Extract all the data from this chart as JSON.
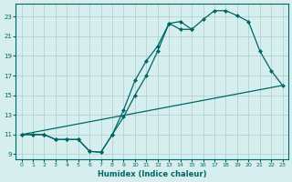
{
  "xlabel": "Humidex (Indice chaleur)",
  "background_color": "#d6eeee",
  "grid_color": "#aacece",
  "line_color": "#006666",
  "xlim": [
    -0.5,
    23.5
  ],
  "ylim": [
    8.5,
    24.3
  ],
  "yticks": [
    9,
    11,
    13,
    15,
    17,
    19,
    21,
    23
  ],
  "xticks": [
    0,
    1,
    2,
    3,
    4,
    5,
    6,
    7,
    8,
    9,
    10,
    11,
    12,
    13,
    14,
    15,
    16,
    17,
    18,
    19,
    20,
    21,
    22,
    23
  ],
  "line1_x": [
    0,
    1,
    2,
    3,
    4,
    5,
    6,
    7,
    8,
    9,
    10,
    11,
    12,
    13,
    14,
    15
  ],
  "line1_y": [
    11,
    11,
    11,
    10.5,
    10.5,
    10.5,
    9.3,
    9.2,
    11.0,
    12.8,
    15.0,
    17.0,
    19.5,
    22.3,
    21.7,
    21.7
  ],
  "line2_x": [
    0,
    1,
    2,
    3,
    4,
    5,
    6,
    7,
    8,
    9,
    10,
    11,
    12,
    13,
    14,
    15,
    16,
    17,
    18,
    19,
    20,
    21,
    22,
    23
  ],
  "line2_y": [
    11,
    11,
    11,
    10.5,
    10.5,
    10.5,
    9.3,
    9.2,
    11.0,
    13.5,
    16.5,
    18.5,
    20.0,
    22.3,
    22.5,
    21.7,
    22.7,
    23.6,
    23.6,
    23.1,
    22.5,
    19.5,
    17.5,
    16.0
  ],
  "line3_x": [
    0,
    23
  ],
  "line3_y": [
    11,
    16.0
  ],
  "markersize": 2.5
}
